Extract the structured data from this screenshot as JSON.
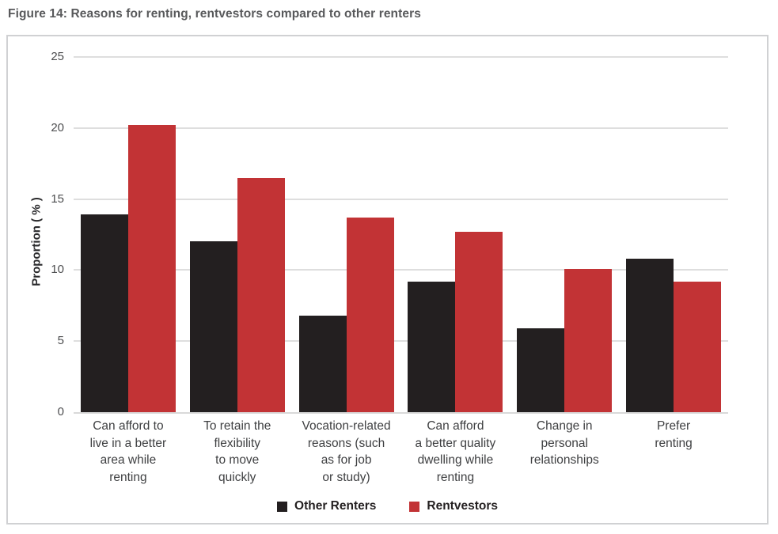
{
  "title": "Figure 14: Reasons for renting, rentvestors compared to other renters",
  "colors": {
    "other_renters": "#231f20",
    "rentvestors": "#c23335",
    "gridline": "#dedede",
    "panel_border": "#d0d1d3",
    "title_text": "#58595b",
    "tick_text": "#4c4d4f",
    "category_text": "#3e3f41"
  },
  "legend": {
    "items": [
      {
        "label": "Other Renters",
        "color": "#231f20"
      },
      {
        "label": "Rentvestors",
        "color": "#c23335"
      }
    ]
  },
  "chart_data": {
    "type": "bar",
    "title": "Figure 14: Reasons for renting, rentvestors compared to other renters",
    "categories": [
      "Can afford to live in a better area while renting",
      "To retain the flexibility to move quickly",
      "Vocation-related reasons (such as for job or study)",
      "Can afford a better quality dwelling while renting",
      "Change in personal relationships",
      "Prefer renting"
    ],
    "categories_lines": [
      [
        "Can afford to",
        "live in a better",
        "area while",
        "renting"
      ],
      [
        "To retain the",
        "flexibility",
        "to move",
        "quickly"
      ],
      [
        "Vocation-related",
        "reasons (such",
        "as for job",
        "or study)"
      ],
      [
        "Can afford",
        "a better quality",
        "dwelling while",
        "renting"
      ],
      [
        "Change in",
        "personal",
        "relationships"
      ],
      [
        "Prefer",
        "renting"
      ]
    ],
    "series": [
      {
        "name": "Other Renters",
        "color": "#231f20",
        "values": [
          13.9,
          12.0,
          6.8,
          9.2,
          5.9,
          10.8
        ]
      },
      {
        "name": "Rentvestors",
        "color": "#c23335",
        "values": [
          20.2,
          16.5,
          13.7,
          12.7,
          10.1,
          9.2
        ]
      }
    ],
    "xlabel": "",
    "ylabel": "Proportion ( % )",
    "ylim": [
      0,
      25
    ],
    "yticks": [
      0,
      5,
      10,
      15,
      20,
      25
    ],
    "grid": true,
    "legend_position": "bottom"
  }
}
